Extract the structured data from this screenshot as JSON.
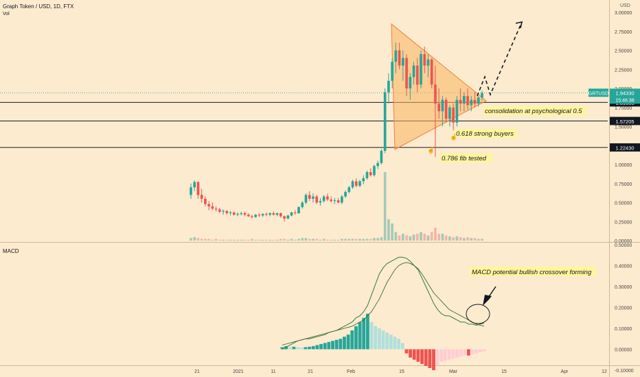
{
  "header": {
    "symbol_title": "Graph Token / USD, 1D, FTX",
    "vol_label": "Vol"
  },
  "macd_label": "MACD",
  "currency_label": "USD",
  "colors": {
    "background": "#fdebcf",
    "up": "#26a69a",
    "down": "#ef5350",
    "up_vol": "#8fc1b2",
    "down_vol": "#f0a89e",
    "hist_up_strong": "#26a69a",
    "hist_up_weak": "#b2dfdb",
    "hist_down_strong": "#ef5350",
    "hist_down_weak": "#ffcdd2",
    "triangle_fill": "#f7b560",
    "triangle_stroke": "#f57f3a",
    "text_bg": "#fff59d",
    "line": "#131722",
    "macd_line": "#2e7d32"
  },
  "chart_data": [
    {
      "type": "candlestick",
      "title": "Graph Token / USD, 1D, FTX",
      "ylim": [
        0,
        3.0
      ],
      "y_ticks": [
        "0.00000",
        "0.25000",
        "0.50000",
        "0.75000",
        "1.00000",
        "1.25000",
        "1.50000",
        "1.75000",
        "2.00000",
        "2.25000",
        "2.50000",
        "2.75000",
        "3.00000"
      ],
      "x_ticks": [
        "21",
        "2021",
        "11",
        "21",
        "Feb",
        "15",
        "Mar",
        "15",
        "Apr",
        "12"
      ],
      "ohlc": [
        [
          0.6,
          0.75,
          0.55,
          0.7
        ],
        [
          0.7,
          0.79,
          0.65,
          0.77
        ],
        [
          0.77,
          0.78,
          0.55,
          0.6
        ],
        [
          0.6,
          0.68,
          0.5,
          0.55
        ],
        [
          0.55,
          0.58,
          0.45,
          0.48
        ],
        [
          0.48,
          0.52,
          0.4,
          0.45
        ],
        [
          0.45,
          0.5,
          0.4,
          0.42
        ],
        [
          0.42,
          0.45,
          0.38,
          0.41
        ],
        [
          0.41,
          0.43,
          0.36,
          0.38
        ],
        [
          0.38,
          0.41,
          0.34,
          0.39
        ],
        [
          0.39,
          0.4,
          0.34,
          0.36
        ],
        [
          0.36,
          0.39,
          0.33,
          0.37
        ],
        [
          0.37,
          0.38,
          0.33,
          0.34
        ],
        [
          0.34,
          0.37,
          0.32,
          0.35
        ],
        [
          0.35,
          0.38,
          0.33,
          0.36
        ],
        [
          0.36,
          0.38,
          0.32,
          0.34
        ],
        [
          0.34,
          0.36,
          0.31,
          0.32
        ],
        [
          0.32,
          0.34,
          0.29,
          0.31
        ],
        [
          0.31,
          0.35,
          0.3,
          0.34
        ],
        [
          0.34,
          0.36,
          0.31,
          0.33
        ],
        [
          0.33,
          0.36,
          0.31,
          0.35
        ],
        [
          0.35,
          0.37,
          0.32,
          0.34
        ],
        [
          0.34,
          0.37,
          0.32,
          0.36
        ],
        [
          0.36,
          0.38,
          0.33,
          0.34
        ],
        [
          0.34,
          0.37,
          0.32,
          0.36
        ],
        [
          0.36,
          0.37,
          0.3,
          0.32
        ],
        [
          0.32,
          0.33,
          0.25,
          0.29
        ],
        [
          0.29,
          0.34,
          0.28,
          0.33
        ],
        [
          0.33,
          0.38,
          0.32,
          0.37
        ],
        [
          0.37,
          0.4,
          0.34,
          0.36
        ],
        [
          0.36,
          0.45,
          0.35,
          0.44
        ],
        [
          0.44,
          0.52,
          0.42,
          0.5
        ],
        [
          0.5,
          0.62,
          0.48,
          0.6
        ],
        [
          0.6,
          0.65,
          0.52,
          0.55
        ],
        [
          0.55,
          0.62,
          0.5,
          0.58
        ],
        [
          0.58,
          0.6,
          0.48,
          0.5
        ],
        [
          0.5,
          0.56,
          0.46,
          0.52
        ],
        [
          0.52,
          0.6,
          0.5,
          0.58
        ],
        [
          0.58,
          0.62,
          0.52,
          0.54
        ],
        [
          0.54,
          0.58,
          0.5,
          0.52
        ],
        [
          0.52,
          0.56,
          0.48,
          0.53
        ],
        [
          0.53,
          0.56,
          0.49,
          0.5
        ],
        [
          0.5,
          0.6,
          0.48,
          0.58
        ],
        [
          0.58,
          0.66,
          0.56,
          0.64
        ],
        [
          0.64,
          0.72,
          0.62,
          0.7
        ],
        [
          0.7,
          0.8,
          0.68,
          0.78
        ],
        [
          0.78,
          0.82,
          0.7,
          0.72
        ],
        [
          0.72,
          0.8,
          0.7,
          0.78
        ],
        [
          0.78,
          0.86,
          0.74,
          0.82
        ],
        [
          0.82,
          0.92,
          0.8,
          0.9
        ],
        [
          0.9,
          0.95,
          0.84,
          0.86
        ],
        [
          0.86,
          1.0,
          0.84,
          0.98
        ],
        [
          0.98,
          1.05,
          0.94,
          1.02
        ],
        [
          1.02,
          1.2,
          1.0,
          1.18
        ],
        [
          1.18,
          2.0,
          1.15,
          1.95
        ],
        [
          1.95,
          2.2,
          1.8,
          2.1
        ],
        [
          2.1,
          2.4,
          2.0,
          2.35
        ],
        [
          2.35,
          2.6,
          2.2,
          2.5
        ],
        [
          2.5,
          2.6,
          2.25,
          2.3
        ],
        [
          2.3,
          2.5,
          2.1,
          2.4
        ],
        [
          2.4,
          2.45,
          1.9,
          2.0
        ],
        [
          2.0,
          2.2,
          1.85,
          2.15
        ],
        [
          2.15,
          2.35,
          2.05,
          2.3
        ],
        [
          2.3,
          2.4,
          1.95,
          2.05
        ],
        [
          2.05,
          2.5,
          2.0,
          2.45
        ],
        [
          2.45,
          2.55,
          2.2,
          2.3
        ],
        [
          2.3,
          2.45,
          2.15,
          2.38
        ],
        [
          2.38,
          2.4,
          2.0,
          2.05
        ],
        [
          2.05,
          2.3,
          1.1,
          1.8
        ],
        [
          1.8,
          2.0,
          1.6,
          1.7
        ],
        [
          1.7,
          1.9,
          1.5,
          1.85
        ],
        [
          1.85,
          1.88,
          1.55,
          1.6
        ],
        [
          1.6,
          1.78,
          1.5,
          1.75
        ],
        [
          1.75,
          1.8,
          1.45,
          1.55
        ],
        [
          1.55,
          1.9,
          1.5,
          1.85
        ],
        [
          1.85,
          2.0,
          1.7,
          1.8
        ],
        [
          1.8,
          1.95,
          1.7,
          1.9
        ],
        [
          1.9,
          2.0,
          1.72,
          1.78
        ],
        [
          1.78,
          1.9,
          1.7,
          1.85
        ],
        [
          1.85,
          1.95,
          1.75,
          1.8
        ],
        [
          1.8,
          1.9,
          1.76,
          1.88
        ],
        [
          1.88,
          1.97,
          1.84,
          1.94
        ]
      ],
      "volume": [
        0.03,
        0.04,
        0.03,
        0.02,
        0.02,
        0.02,
        0.01,
        0.02,
        0.01,
        0.01,
        0.01,
        0.01,
        0.01,
        0.01,
        0.01,
        0.01,
        0.01,
        0.02,
        0.01,
        0.01,
        0.01,
        0.01,
        0.01,
        0.01,
        0.01,
        0.02,
        0.02,
        0.01,
        0.02,
        0.01,
        0.02,
        0.03,
        0.03,
        0.02,
        0.02,
        0.02,
        0.01,
        0.02,
        0.01,
        0.01,
        0.01,
        0.01,
        0.02,
        0.02,
        0.02,
        0.02,
        0.02,
        0.02,
        0.02,
        0.02,
        0.02,
        0.03,
        0.03,
        0.04,
        0.8,
        0.25,
        0.2,
        0.1,
        0.06,
        0.08,
        0.06,
        0.05,
        0.07,
        0.08,
        0.1,
        0.08,
        0.06,
        0.1,
        0.15,
        0.08,
        0.08,
        0.06,
        0.05,
        0.04,
        0.05,
        0.04,
        0.03,
        0.04,
        0.03,
        0.03,
        0.02,
        0.02
      ],
      "last_price": 1.9433,
      "countdown": "15:46:38",
      "symbol_badge": "GRTUSD",
      "levels": [
        1.81605,
        1.57205,
        1.2243
      ],
      "annotations": [
        "consolidation at psychological 0.5",
        "0.618 strong buyers",
        "0.786 fib tested"
      ]
    },
    {
      "type": "macd",
      "title": "MACD",
      "ylim": [
        -0.1,
        0.5
      ],
      "y_ticks": [
        "0.50000",
        "0.40000",
        "0.30000",
        "0.20000",
        "0.10000",
        "0.00000",
        "-0.10000"
      ],
      "macd": [
        0.0,
        0.01,
        0.02,
        0.03,
        0.04,
        0.045,
        0.05,
        0.05,
        0.055,
        0.06,
        0.065,
        0.07,
        0.08,
        0.085,
        0.09,
        0.1,
        0.11,
        0.12,
        0.13,
        0.15,
        0.16,
        0.18,
        0.21,
        0.26,
        0.31,
        0.36,
        0.39,
        0.41,
        0.42,
        0.43,
        0.44,
        0.44,
        0.435,
        0.42,
        0.4,
        0.38,
        0.34,
        0.3,
        0.26,
        0.22,
        0.19,
        0.17,
        0.16,
        0.16,
        0.15,
        0.14,
        0.13,
        0.13,
        0.12,
        0.12,
        0.115,
        0.12,
        0.125
      ],
      "signal": [
        0.02,
        0.025,
        0.03,
        0.035,
        0.04,
        0.045,
        0.05,
        0.055,
        0.06,
        0.065,
        0.07,
        0.075,
        0.08,
        0.085,
        0.09,
        0.095,
        0.1,
        0.105,
        0.11,
        0.12,
        0.13,
        0.14,
        0.16,
        0.18,
        0.21,
        0.24,
        0.28,
        0.32,
        0.35,
        0.38,
        0.4,
        0.41,
        0.415,
        0.41,
        0.4,
        0.385,
        0.36,
        0.33,
        0.3,
        0.27,
        0.25,
        0.23,
        0.21,
        0.19,
        0.18,
        0.17,
        0.16,
        0.15,
        0.14,
        0.13,
        0.12,
        0.115,
        0.11
      ],
      "histogram": [
        0.01,
        0.015,
        0.01,
        0.012,
        0.01,
        0.008,
        0.01,
        0.012,
        0.015,
        0.02,
        0.025,
        0.03,
        0.035,
        0.04,
        0.045,
        0.05,
        0.06,
        0.07,
        0.09,
        0.11,
        0.13,
        0.15,
        0.17,
        0.13,
        0.11,
        0.1,
        0.09,
        0.08,
        0.07,
        0.06,
        0.05,
        0.03,
        -0.02,
        -0.04,
        -0.05,
        -0.06,
        -0.07,
        -0.08,
        -0.09,
        -0.1,
        -0.075,
        -0.06,
        -0.055,
        -0.05,
        -0.045,
        -0.04,
        -0.035,
        -0.03,
        -0.03,
        -0.025,
        -0.02,
        -0.015,
        -0.01
      ],
      "annotation": "MACD potential bullish crossover forming"
    }
  ]
}
